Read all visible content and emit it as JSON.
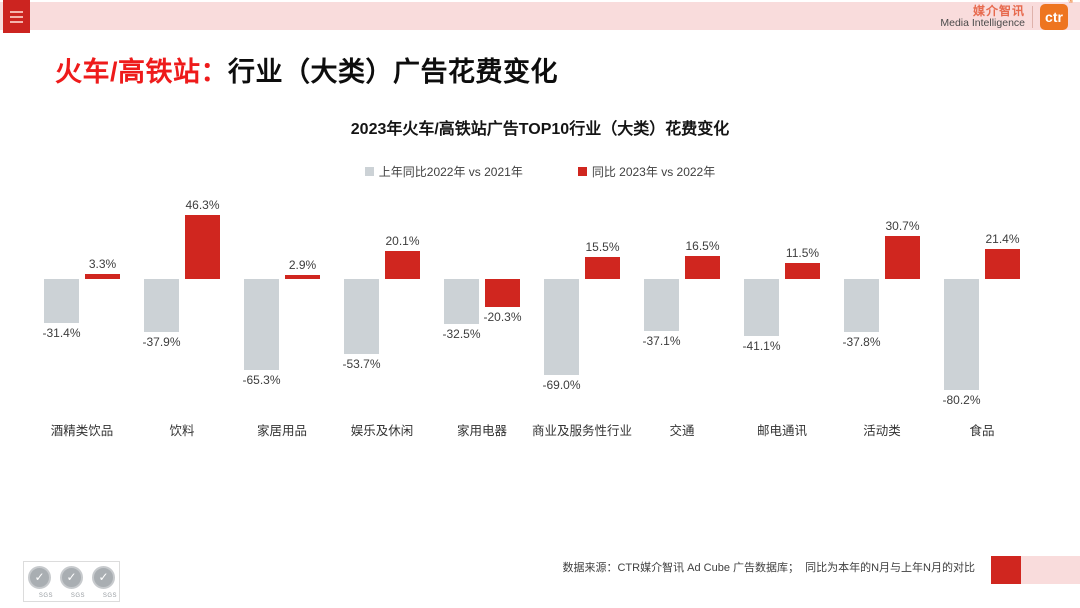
{
  "header": {
    "brand": {
      "cn": "媒介智讯",
      "en": "Media Intelligence",
      "logo": "ctr",
      "reg_mark": "®"
    }
  },
  "page_title": {
    "highlight": "火车/高铁站：",
    "rest": "行业（大类）广告花费变化"
  },
  "chart_data": {
    "type": "bar",
    "title": "2023年火车/高铁站广告TOP10行业（大类）花费变化",
    "categories": [
      "酒精类饮品",
      "饮料",
      "家居用品",
      "娱乐及休闲",
      "家用电器",
      "商业及服务性行业",
      "交通",
      "邮电通讯",
      "活动类",
      "食品"
    ],
    "series": [
      {
        "name": "上年同比2022年  vs  2021年",
        "color": "#ccd2d6",
        "values": [
          -31.4,
          -37.9,
          -65.3,
          -53.7,
          -32.5,
          -69.0,
          -37.1,
          -41.1,
          -37.8,
          -80.2
        ]
      },
      {
        "name": "同比 2023年  vs  2022年",
        "color": "#d0261f",
        "values": [
          3.3,
          46.3,
          2.9,
          20.1,
          -20.3,
          15.5,
          16.5,
          11.5,
          30.7,
          21.4
        ]
      }
    ],
    "value_suffix": "%",
    "value_decimals": 1,
    "ylim": [
      -90,
      55
    ],
    "grid": false,
    "legend_position": "top",
    "y_axis_hidden": true
  },
  "footer": {
    "source": "数据来源：CTR媒介智讯 Ad Cube 广告数据库；  同比为本年的N月与上年N月的对比",
    "sgs_label": "SGS",
    "check_glyph": "✓"
  },
  "colors": {
    "accent_red": "#d0261f",
    "title_red": "#ee1b1b",
    "topbar_pink": "#f9dcdc",
    "menu_red": "#cc2420",
    "ctr_orange": "#ee7520",
    "bar_gray": "#ccd2d6"
  }
}
